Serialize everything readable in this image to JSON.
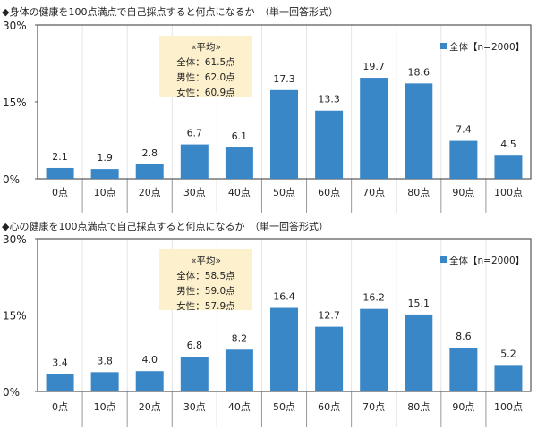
{
  "chart_data": [
    {
      "type": "bar",
      "title": "◆身体の健康を100点満点で自己採点すると何点になるか　（単一回答形式）",
      "categories": [
        "0点",
        "10点",
        "20点",
        "30点",
        "40点",
        "50点",
        "60点",
        "70点",
        "80点",
        "90点",
        "100点"
      ],
      "series": [
        {
          "name": "全体【n=2000】",
          "values": [
            2.1,
            1.9,
            2.8,
            6.7,
            6.1,
            17.3,
            13.3,
            19.7,
            18.6,
            7.4,
            4.5
          ]
        }
      ],
      "ylim": [
        0,
        30
      ],
      "yticks": [
        "0%",
        "15%",
        "30%"
      ],
      "legend": "top-right",
      "grid": "vertical category separators",
      "annotation": [
        "«平均»",
        "全体：61.5点",
        "男性：62.0点",
        "女性：60.9点"
      ]
    },
    {
      "type": "bar",
      "title": "◆心の健康を100点満点で自己採点すると何点になるか　（単一回答形式）",
      "categories": [
        "0点",
        "10点",
        "20点",
        "30点",
        "40点",
        "50点",
        "60点",
        "70点",
        "80点",
        "90点",
        "100点"
      ],
      "series": [
        {
          "name": "全体【n=2000】",
          "values": [
            3.4,
            3.8,
            4.0,
            6.8,
            8.2,
            16.4,
            12.7,
            16.2,
            15.1,
            8.6,
            5.2
          ]
        }
      ],
      "ylim": [
        0,
        30
      ],
      "yticks": [
        "0%",
        "15%",
        "30%"
      ],
      "legend": "top-right",
      "grid": "vertical category separators",
      "annotation": [
        "«平均»",
        "全体：58.5点",
        "男性：59.0点",
        "女性：57.9点"
      ]
    }
  ],
  "colors": {
    "bar": "#3a87c8",
    "annotation_bg": "#fdf0cc"
  }
}
